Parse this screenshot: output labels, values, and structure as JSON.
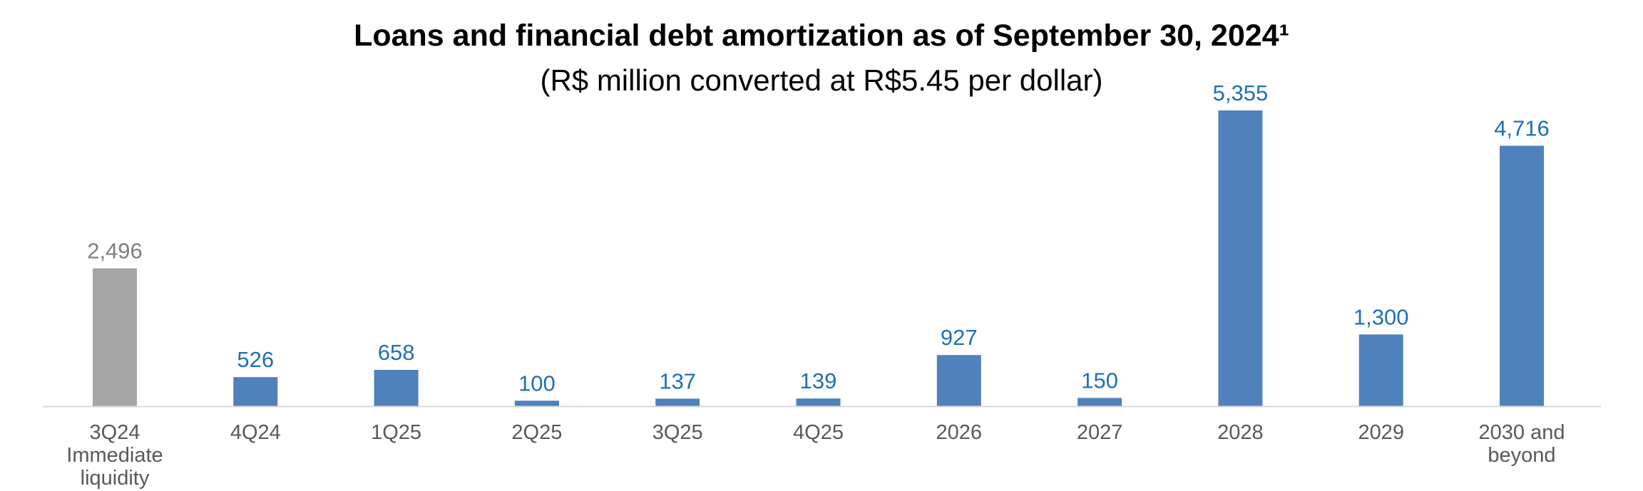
{
  "chart_data": {
    "type": "bar",
    "title": "Loans and financial debt amortization as of September 30, 2024¹",
    "subtitle": "(R$ million converted at R$5.45 per dollar)",
    "categories": [
      "3Q24 Immediate liquidity",
      "4Q24",
      "1Q25",
      "2Q25",
      "3Q25",
      "4Q25",
      "2026",
      "2027",
      "2028",
      "2029",
      "2030 and beyond"
    ],
    "category_lines": [
      [
        "3Q24",
        "Immediate",
        "liquidity"
      ],
      [
        "4Q24"
      ],
      [
        "1Q25"
      ],
      [
        "2Q25"
      ],
      [
        "3Q25"
      ],
      [
        "4Q25"
      ],
      [
        "2026"
      ],
      [
        "2027"
      ],
      [
        "2028"
      ],
      [
        "2029"
      ],
      [
        "2030 and",
        "beyond"
      ]
    ],
    "values": [
      2496,
      526,
      658,
      100,
      137,
      139,
      927,
      150,
      5355,
      1300,
      4716
    ],
    "value_labels": [
      "2,496",
      "526",
      "658",
      "100",
      "137",
      "139",
      "927",
      "150",
      "5,355",
      "1,300",
      "4,716"
    ],
    "bar_colors": [
      "#A5A5A5",
      "#4F81BD",
      "#4F81BD",
      "#4F81BD",
      "#4F81BD",
      "#4F81BD",
      "#4F81BD",
      "#4F81BD",
      "#4F81BD",
      "#4F81BD",
      "#4F81BD"
    ],
    "label_colors": [
      "#7F7F7F",
      "#1F6FB8",
      "#1F6FB8",
      "#1F6FB8",
      "#1F6FB8",
      "#1F6FB8",
      "#1F6FB8",
      "#1F6FB8",
      "#1F6FB8",
      "#1F6FB8",
      "#1F6FB8"
    ],
    "ylim": [
      0,
      5355
    ],
    "grid": false,
    "legend": "none",
    "axis_color": "#D9D9D9",
    "category_label_color": "#595959"
  }
}
